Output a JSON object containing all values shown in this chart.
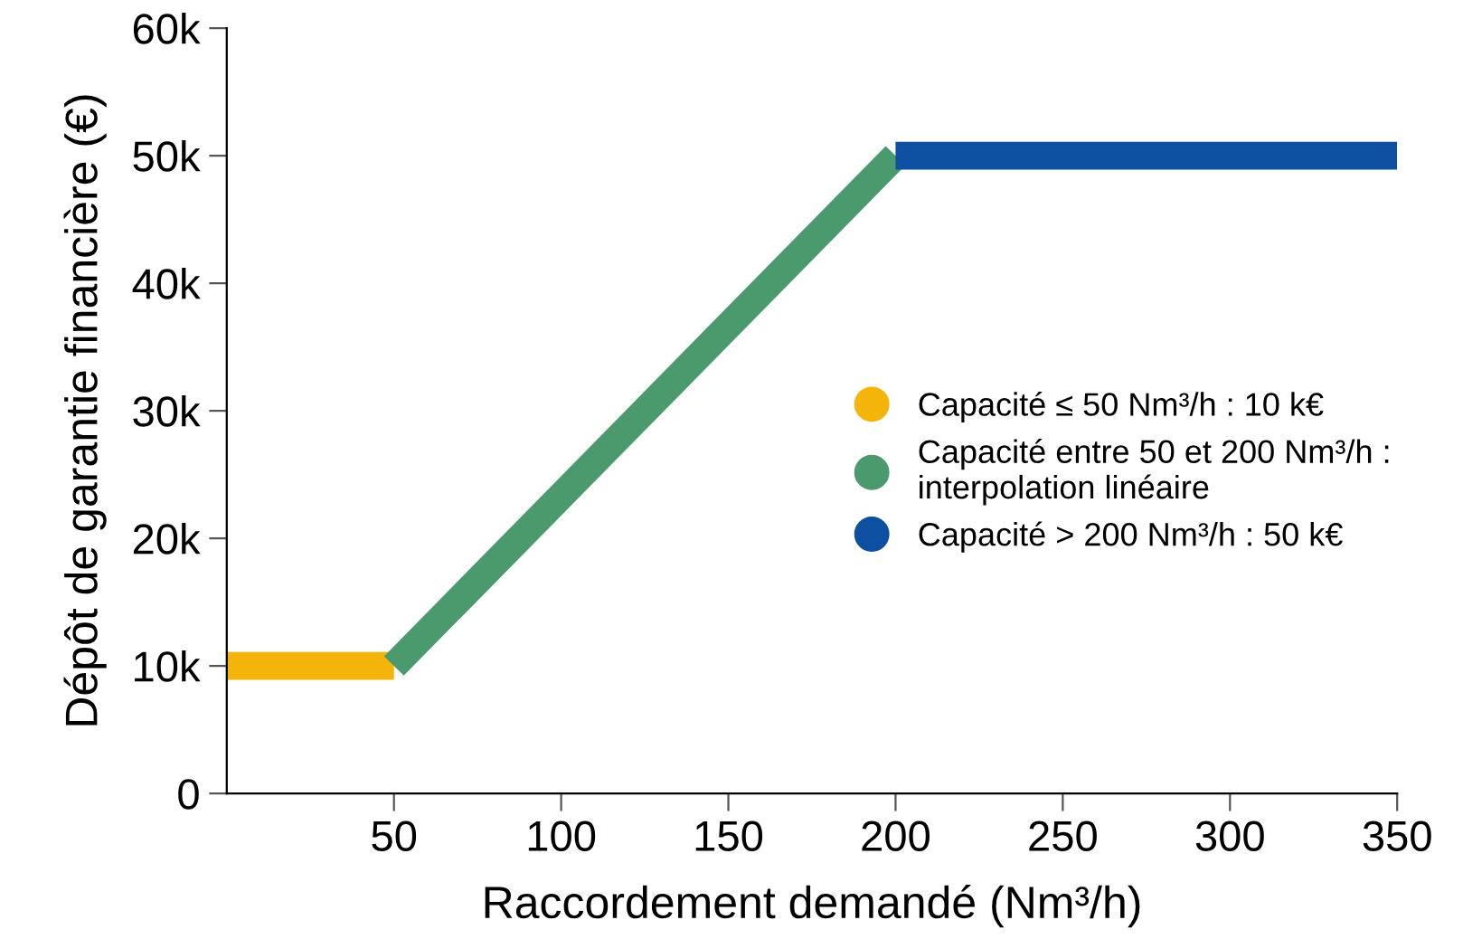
{
  "chart_data": {
    "type": "line",
    "xlabel": "Raccordement demandé (Nm³/h)",
    "ylabel": "Dépôt de garantie financière (€)",
    "series": [
      {
        "name": "Capacité ≤ 50 Nm³/h : 10 k€",
        "color": "#f5b40a",
        "x": [
          0,
          50
        ],
        "values": [
          10000,
          10000
        ]
      },
      {
        "name": "Capacité entre 50 et 200 Nm³/h :\ninterpolation linéaire",
        "color": "#4a9a6e",
        "x": [
          50,
          200
        ],
        "values": [
          10000,
          50000
        ]
      },
      {
        "name": "Capacité > 200 Nm³/h : 50 k€",
        "color": "#0d4fa0",
        "x": [
          200,
          350
        ],
        "values": [
          50000,
          50000
        ]
      }
    ],
    "xlim": [
      0,
      350
    ],
    "xticks": [
      50,
      100,
      150,
      200,
      250,
      300,
      350
    ],
    "ylim": [
      0,
      60000
    ],
    "yticks": [
      0,
      {
        "value": 10000,
        "label": "10k"
      },
      {
        "value": 20000,
        "label": "20k"
      },
      {
        "value": 30000,
        "label": "30k"
      },
      {
        "value": 40000,
        "label": "40k"
      },
      {
        "value": 50000,
        "label": "50k"
      },
      {
        "value": 60000,
        "label": "60k"
      }
    ],
    "grid": false,
    "legend": "right",
    "marker": "none",
    "line_style": "solid"
  }
}
